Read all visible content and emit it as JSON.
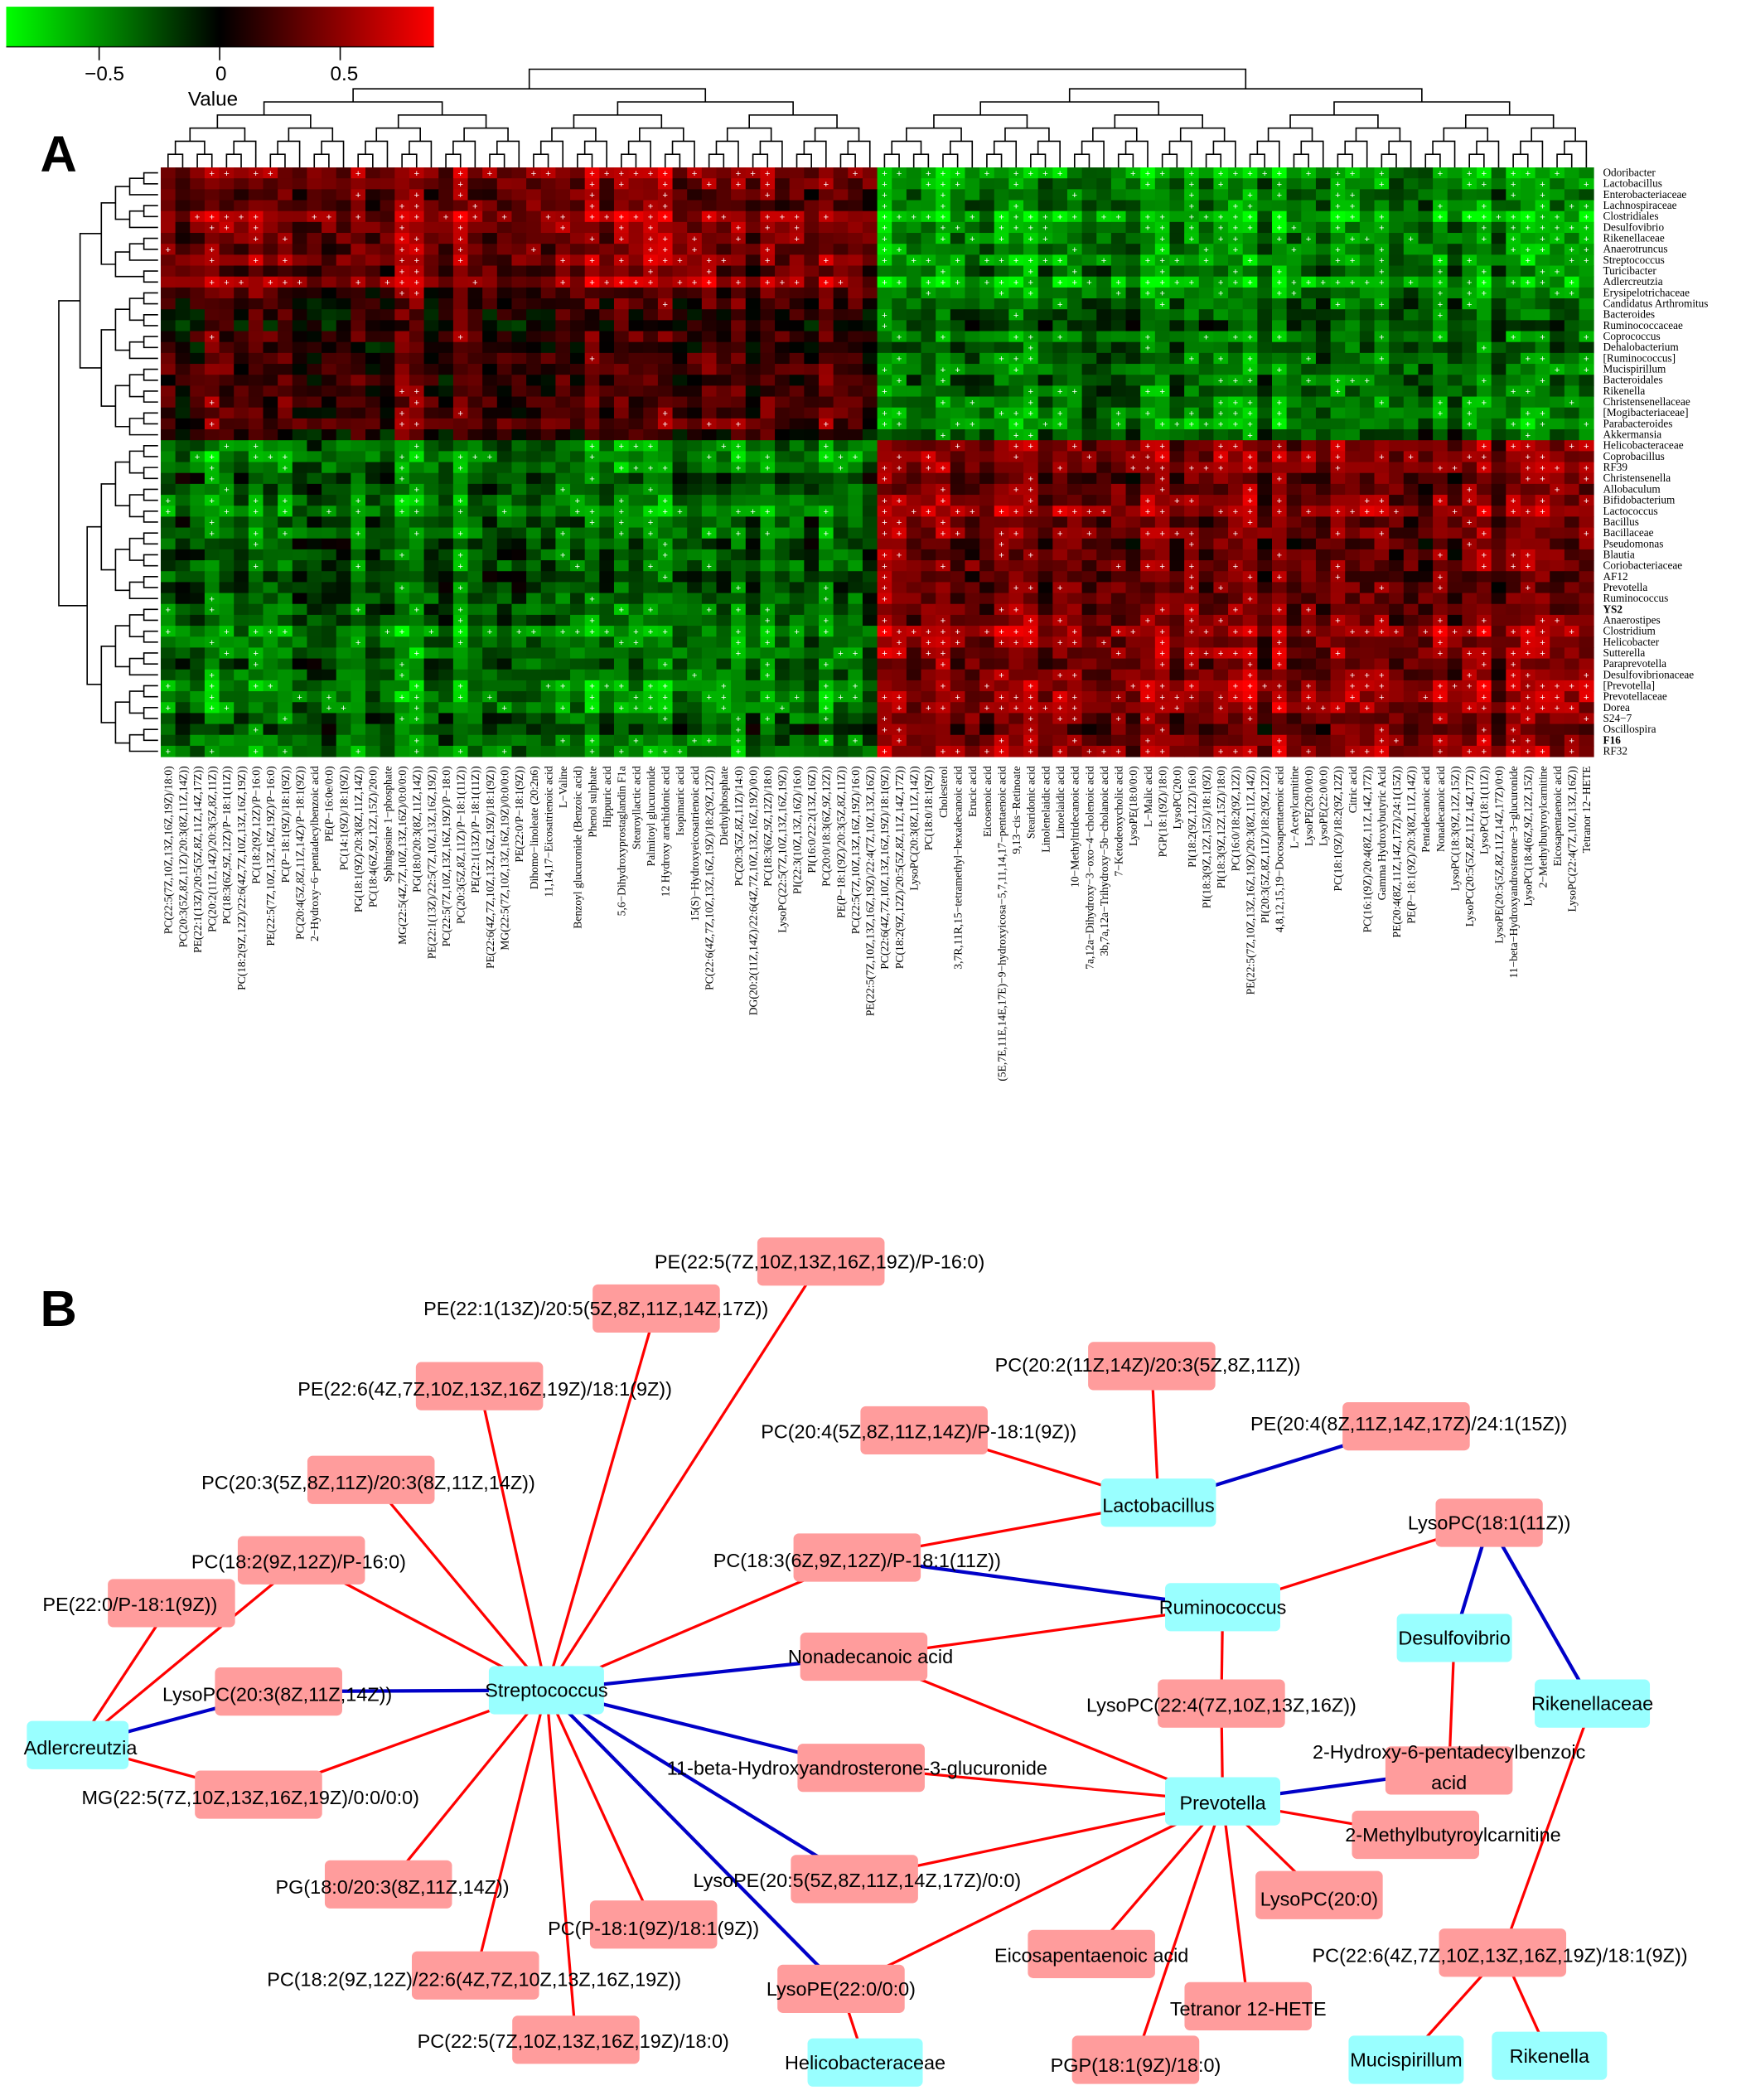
{
  "colorbar": {
    "title": "Value",
    "ticks": [
      "−0.5",
      "0",
      "0.5"
    ],
    "tick_values": [
      -0.5,
      0,
      0.5
    ],
    "range": [
      -0.89,
      0.89
    ],
    "low_color": "#00ff00",
    "mid_color": "#000000",
    "high_color": "#ff0000"
  },
  "panels": {
    "a": "A",
    "b": "B"
  },
  "chart_data": [
    {
      "type": "heatmap",
      "title": "",
      "significance_marker": "+",
      "row_dendrogram": true,
      "column_dendrogram": true,
      "rows": [
        "Odoribacter",
        "Lactobacillus",
        "Enterobacteriaceae",
        "Lachnospiraceae",
        "Clostridiales",
        "Desulfovibrio",
        "Rikenellaceae",
        "Anaerotruncus",
        "Streptococcus",
        "Turicibacter",
        "Adlercreutzia",
        "Erysipelotrichaceae",
        "Candidatus Arthromitus",
        "Bacteroides",
        "Ruminococcaceae",
        "Coprococcus",
        "Dehalobacterium",
        "[Ruminococcus]",
        "Mucispirillum",
        "Bacteroidales",
        "Rikenella",
        "Christensenellaceae",
        "[Mogibacteriaceae]",
        "Parabacteroides",
        "Akkermansia",
        "Helicobacteraceae",
        "Coprobacillus",
        "RF39",
        "Christensenella",
        "Allobaculum",
        "Bifidobacterium",
        "Lactococcus",
        "Bacillus",
        "Bacillaceae",
        "Pseudomonas",
        "Blautia",
        "Coriobacteriaceae",
        "AF12",
        "Prevotella",
        "Ruminococcus",
        "YS2",
        "Anaerostipes",
        "Clostridium",
        "Helicobacter",
        "Sutterella",
        "Paraprevotella",
        "Desulfovibrionaceae",
        "[Prevotella]",
        "Prevotellaceae",
        "Dorea",
        "S24−7",
        "Oscillospira",
        "F16",
        "RF32"
      ],
      "highlighted_rows": [
        "YS2",
        "F16"
      ],
      "columns": [
        "PC(22:5(7Z,10Z,13Z,16Z,19Z)/18:0)",
        "PC(20:3(5Z,8Z,11Z)/20:3(8Z,11Z,14Z))",
        "PE(22:1(13Z)/20:5(5Z,8Z,11Z,14Z,17Z))",
        "PC(20:2(11Z,14Z)/20:3(5Z,8Z,11Z))",
        "PC(18:3(6Z,9Z,12Z)/P−18:1(11Z))",
        "PC(18:2(9Z,12Z)/22:6(4Z,7Z,10Z,13Z,16Z,19Z))",
        "PC(18:2(9Z,12Z)/P−16:0)",
        "PE(22:5(7Z,10Z,13Z,16Z,19Z)/P−16:0)",
        "PC(P−18:1(9Z)/18:1(9Z))",
        "PC(20:4(5Z,8Z,11Z,14Z)/P−18:1(9Z))",
        "2−Hydroxy−6−pentadecylbenzoic acid",
        "PE(P−16:0e/0:0)",
        "PC(14:1(9Z)/18:1(9Z))",
        "PG(18:1(9Z)/20:3(8Z,11Z,14Z))",
        "PC(18:4(6Z,9Z,12Z,15Z)/20:0)",
        "Sphingosine 1−phosphate",
        "MG(22:5(4Z,7Z,10Z,13Z,16Z)/0:0/0:0)",
        "PG(18:0/20:3(8Z,11Z,14Z))",
        "PE(22:1(13Z)/22:5(7Z,10Z,13Z,16Z,19Z))",
        "PC(22:5(7Z,10Z,13Z,16Z,19Z)/P−18:0)",
        "PC(20:3(5Z,8Z,11Z)/P−18:1(11Z))",
        "PE(22:1(13Z)/P−18:1(11Z))",
        "PE(22:6(4Z,7Z,10Z,13Z,16Z,19Z)/18:1(9Z))",
        "MG(22:5(7Z,10Z,13Z,16Z,19Z)/0:0/0:0)",
        "PE(22:0/P−18:1(9Z))",
        "Dihomo−linoleate (20:2n6)",
        "11,14,17−Eicosatrienoic acid",
        "L−Valine",
        "Benzoyl glucuronide (Benzoic acid)",
        "Phenol sulphate",
        "Hippuric acid",
        "5,6−Dihydroxyprostaglandin F1a",
        "Stearoyllactic acid",
        "Palmitoyl glucuronide",
        "12 Hydroxy arachidonic acid",
        "Isopimaric acid",
        "15(S)−Hydroxyeicosatrienoic acid",
        "PC(22:6(4Z,7Z,10Z,13Z,16Z,19Z)/18:2(9Z,12Z))",
        "Diethylphosphate",
        "PC(20:3(5Z,8Z,11Z)/14:0)",
        "DG(20:2(11Z,14Z)/22:6(4Z,7Z,10Z,13Z,16Z,19Z)/0:0)",
        "PC(18:3(6Z,9Z,12Z)/18:0)",
        "LysoPC(22:5(7Z,10Z,13Z,16Z,19Z))",
        "PI(22:3(10Z,13Z,16Z)/16:0)",
        "PI(16:0/22:2(13Z,16Z))",
        "PC(20:0/18:3(6Z,9Z,12Z))",
        "PE(P−18:1(9Z)/20:3(5Z,8Z,11Z))",
        "PC(22:5(7Z,10Z,13Z,16Z,19Z)/16:0)",
        "PE(22:5(7Z,10Z,13Z,16Z,19Z)/22:4(7Z,10Z,13Z,16Z))",
        "PC(22:6(4Z,7Z,10Z,13Z,16Z,19Z)/18:1(9Z))",
        "PC(18:2(9Z,12Z)/20:5(5Z,8Z,11Z,14Z,17Z))",
        "LysoPC(20:3(8Z,11Z,14Z))",
        "PC(18:0/18:1(9Z))",
        "Cholesterol",
        "3,7R,11R,15−tetramethyl−hexadecanoic acid",
        "Erucic acid",
        "Eicosenoic acid",
        "(5E,7E,11E,14E,17E)−9−hydroxyicosa−5,7,11,14,17−pentaenoic acid",
        "9,13−cis−Retinoate",
        "Stearidonic acid",
        "Linolenelaidic acid",
        "Linoelaidic acid",
        "10−Methyltridecanoic acid",
        "7a,12a−Dihydroxy−3−oxo−4−cholenoic acid",
        "3b,7a,12a−Trihydroxy−5b−cholanoic acid",
        "7−Ketodeoxycholic acid",
        "LysoPE(18:0/0:0)",
        "L−Malic acid",
        "PGP(18:1(9Z)/18:0)",
        "LysoPC(20:0)",
        "PI(18:2(9Z,12Z)/16:0)",
        "PI(18:3(9Z,12Z,15Z)/18:1(9Z))",
        "PI(18:3(9Z,12Z,15Z)/18:0)",
        "PC(16:0/18:2(9Z,12Z))",
        "PE(22:5(7Z,10Z,13Z,16Z,19Z)/20:3(8Z,11Z,14Z))",
        "PI(20:3(5Z,8Z,11Z)/18:2(9Z,12Z))",
        "4,8,12,15,19−Docosapentaenoic acid",
        "L−Acetylcarnitine",
        "LysoPE(20:0/0:0)",
        "LysoPE(22:0/0:0)",
        "PC(18:1(9Z)/18:2(9Z,12Z))",
        "Citric acid",
        "PC(16:1(9Z)/20:4(8Z,11Z,14Z,17Z))",
        "Gamma Hydroxybutyric Acid",
        "PE(20:4(8Z,11Z,14Z,17Z)/24:1(15Z))",
        "PE(P−18:1(9Z)/20:3(8Z,11Z,14Z))",
        "Pentadecanoic acid",
        "Nonadecanoic acid",
        "LysoPC(18:3(9Z,12Z,15Z))",
        "LysoPC(20:5(5Z,8Z,11Z,14Z,17Z))",
        "LysoPC(18:1(11Z))",
        "LysoPE(20:5(5Z,8Z,11Z,14Z,17Z)/0:0)",
        "11−beta−Hydroxyandrosterone−3−glucuronide",
        "LysoPC(18:4(6Z,9Z,12Z,15Z))",
        "2−Methylbutyroylcarnitine",
        "Eicosapentaenoic acid",
        "LysoPC(22:4(7Z,10Z,13Z,16Z))",
        "Tetranor 12−HETE"
      ],
      "row_clusters": [
        {
          "rows": [
            "Odoribacter",
            "Adlercreutzia"
          ],
          "mean_left_columns": 0.45,
          "mean_right_columns": -0.5
        },
        {
          "rows": [
            "Erysipelotrichaceae",
            "Akkermansia"
          ],
          "mean_left_columns": 0.2,
          "mean_right_columns": -0.35
        },
        {
          "rows": [
            "Helicobacteraceae",
            "RF32"
          ],
          "mean_left_columns": -0.4,
          "mean_right_columns": 0.42
        }
      ],
      "column_clusters": [
        {
          "columns": [
            "PC(22:5(7Z,10Z,13Z,16Z,19Z)/18:0)",
            "PE(22:5(7Z,10Z,13Z,16Z,19Z)/22:4(7Z,10Z,13Z,16Z))"
          ]
        },
        {
          "columns": [
            "PC(22:6(4Z,7Z,10Z,13Z,16Z,19Z)/18:1(9Z))",
            "Tetranor 12−HETE"
          ]
        }
      ]
    }
  ],
  "network": {
    "colors": {
      "positive": "#ff0000",
      "negative": "#0000c8",
      "microbe": "#99ffff",
      "metabolite": "#ff9c9c"
    },
    "nodes": [
      {
        "id": "m1",
        "label": "PE(22:5(7Z,10Z,13Z,16Z,19Z)/P-16:0)",
        "type": "metabolite"
      },
      {
        "id": "m2",
        "label": "PE(22:1(13Z)/20:5(5Z,8Z,11Z,14Z,17Z))",
        "type": "metabolite"
      },
      {
        "id": "m3",
        "label": "PE(22:6(4Z,7Z,10Z,13Z,16Z,19Z)/18:1(9Z))",
        "type": "metabolite"
      },
      {
        "id": "m4",
        "label": "PC(20:3(5Z,8Z,11Z)/20:3(8Z,11Z,14Z))",
        "type": "metabolite"
      },
      {
        "id": "m5",
        "label": "PC(18:2(9Z,12Z)/P-16:0)",
        "type": "metabolite"
      },
      {
        "id": "m6",
        "label": "PE(22:0/P-18:1(9Z))",
        "type": "metabolite"
      },
      {
        "id": "m7",
        "label": "LysoPC(20:3(8Z,11Z,14Z))",
        "type": "metabolite"
      },
      {
        "id": "m8",
        "label": "MG(22:5(7Z,10Z,13Z,16Z,19Z)/0:0/0:0)",
        "type": "metabolite"
      },
      {
        "id": "m9",
        "label": "PG(18:0/20:3(8Z,11Z,14Z))",
        "type": "metabolite"
      },
      {
        "id": "m10",
        "label": "PC(P-18:1(9Z)/18:1(9Z))",
        "type": "metabolite"
      },
      {
        "id": "m11",
        "label": "PC(18:2(9Z,12Z)/22:6(4Z,7Z,10Z,13Z,16Z,19Z))",
        "type": "metabolite"
      },
      {
        "id": "m12",
        "label": "PC(22:5(7Z,10Z,13Z,16Z,19Z)/18:0)",
        "type": "metabolite"
      },
      {
        "id": "m13",
        "label": "PC(20:2(11Z,14Z)/20:3(5Z,8Z,11Z))",
        "type": "metabolite"
      },
      {
        "id": "m14",
        "label": "PE(20:4(8Z,11Z,14Z,17Z)/24:1(15Z))",
        "type": "metabolite"
      },
      {
        "id": "m15",
        "label": "PC(20:4(5Z,8Z,11Z,14Z)/P-18:1(9Z))",
        "type": "metabolite"
      },
      {
        "id": "m16",
        "label": "PC(18:3(6Z,9Z,12Z)/P-18:1(11Z))",
        "type": "metabolite"
      },
      {
        "id": "m17",
        "label": "LysoPC(18:1(11Z))",
        "type": "metabolite"
      },
      {
        "id": "m18",
        "label": "Nonadecanoic acid",
        "type": "metabolite"
      },
      {
        "id": "m19",
        "label": "LysoPC(22:4(7Z,10Z,13Z,16Z))",
        "type": "metabolite"
      },
      {
        "id": "m20",
        "label": "11-beta-Hydroxyandrosterone-3-glucuronide",
        "type": "metabolite"
      },
      {
        "id": "m21",
        "label": "2-Hydroxy-6-pentadecylbenzoic acid",
        "type": "metabolite"
      },
      {
        "id": "m22",
        "label": "2-Methylbutyroylcarnitine",
        "type": "metabolite"
      },
      {
        "id": "m23",
        "label": "LysoPE(20:5(5Z,8Z,11Z,14Z,17Z)/0:0)",
        "type": "metabolite"
      },
      {
        "id": "m24",
        "label": "LysoPC(20:0)",
        "type": "metabolite"
      },
      {
        "id": "m25",
        "label": "LysoPE(22:0/0:0)",
        "type": "metabolite"
      },
      {
        "id": "m26",
        "label": "Eicosapentaenoic acid",
        "type": "metabolite"
      },
      {
        "id": "m27",
        "label": "Tetranor 12-HETE",
        "type": "metabolite"
      },
      {
        "id": "m28",
        "label": "PC(22:6(4Z,7Z,10Z,13Z,16Z,19Z)/18:1(9Z))",
        "type": "metabolite"
      },
      {
        "id": "m29",
        "label": "PGP(18:1(9Z)/18:0)",
        "type": "metabolite"
      },
      {
        "id": "b1",
        "label": "Streptococcus",
        "type": "microbe"
      },
      {
        "id": "b2",
        "label": "Lactobacillus",
        "type": "microbe"
      },
      {
        "id": "b3",
        "label": "Ruminococcus",
        "type": "microbe"
      },
      {
        "id": "b4",
        "label": "Desulfovibrio",
        "type": "microbe"
      },
      {
        "id": "b5",
        "label": "Rikenellaceae",
        "type": "microbe"
      },
      {
        "id": "b6",
        "label": "Adlercreutzia",
        "type": "microbe"
      },
      {
        "id": "b7",
        "label": "Prevotella",
        "type": "microbe"
      },
      {
        "id": "b8",
        "label": "Helicobacteraceae",
        "type": "microbe"
      },
      {
        "id": "b9",
        "label": "Mucispirillum",
        "type": "microbe"
      },
      {
        "id": "b10",
        "label": "Rikenella",
        "type": "microbe"
      }
    ],
    "edges": [
      [
        "b1",
        "m1",
        "positive"
      ],
      [
        "b1",
        "m2",
        "positive"
      ],
      [
        "b1",
        "m3",
        "positive"
      ],
      [
        "b1",
        "m4",
        "positive"
      ],
      [
        "b1",
        "m5",
        "positive"
      ],
      [
        "b1",
        "m7",
        "negative"
      ],
      [
        "b1",
        "m8",
        "positive"
      ],
      [
        "b1",
        "m9",
        "positive"
      ],
      [
        "b1",
        "m10",
        "positive"
      ],
      [
        "b1",
        "m11",
        "positive"
      ],
      [
        "b1",
        "m12",
        "positive"
      ],
      [
        "b1",
        "m16",
        "positive"
      ],
      [
        "b1",
        "m18",
        "negative"
      ],
      [
        "b1",
        "m20",
        "negative"
      ],
      [
        "b1",
        "m23",
        "negative"
      ],
      [
        "b1",
        "m25",
        "negative"
      ],
      [
        "b6",
        "m6",
        "positive"
      ],
      [
        "b6",
        "m5",
        "positive"
      ],
      [
        "b6",
        "m7",
        "negative"
      ],
      [
        "b6",
        "m8",
        "positive"
      ],
      [
        "b2",
        "m13",
        "positive"
      ],
      [
        "b2",
        "m14",
        "negative"
      ],
      [
        "b2",
        "m15",
        "positive"
      ],
      [
        "b2",
        "m16",
        "positive"
      ],
      [
        "b3",
        "m16",
        "negative"
      ],
      [
        "b3",
        "m17",
        "positive"
      ],
      [
        "b3",
        "m18",
        "positive"
      ],
      [
        "b3",
        "m19",
        "positive"
      ],
      [
        "b7",
        "m18",
        "positive"
      ],
      [
        "b7",
        "m19",
        "positive"
      ],
      [
        "b7",
        "m20",
        "positive"
      ],
      [
        "b7",
        "m21",
        "negative"
      ],
      [
        "b7",
        "m22",
        "positive"
      ],
      [
        "b7",
        "m23",
        "positive"
      ],
      [
        "b7",
        "m24",
        "positive"
      ],
      [
        "b7",
        "m25",
        "positive"
      ],
      [
        "b7",
        "m26",
        "positive"
      ],
      [
        "b7",
        "m27",
        "positive"
      ],
      [
        "b7",
        "m29",
        "positive"
      ],
      [
        "b4",
        "m17",
        "negative"
      ],
      [
        "b4",
        "m21",
        "positive"
      ],
      [
        "b5",
        "m17",
        "negative"
      ],
      [
        "b5",
        "m28",
        "positive"
      ],
      [
        "b9",
        "m28",
        "positive"
      ],
      [
        "b10",
        "m28",
        "positive"
      ],
      [
        "b8",
        "m25",
        "positive"
      ]
    ]
  }
}
